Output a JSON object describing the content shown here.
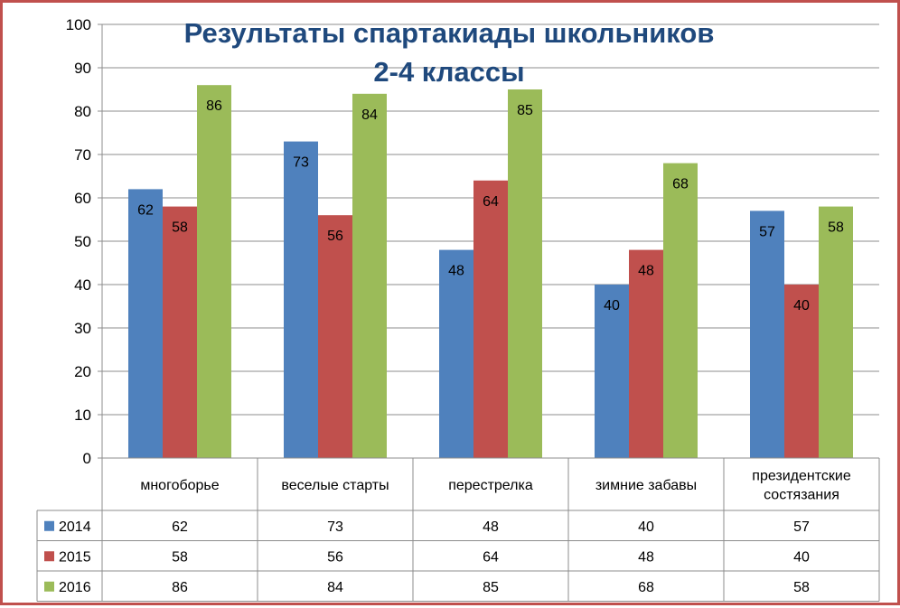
{
  "chart_data": {
    "type": "bar",
    "title_lines": [
      "Результаты спартакиады школьников",
      "2-4 классы"
    ],
    "categories": [
      [
        "многоборье"
      ],
      [
        "веселые старты"
      ],
      [
        "перестрелка"
      ],
      [
        "зимние забавы"
      ],
      [
        "президентские",
        "состязания"
      ]
    ],
    "series": [
      {
        "name": "2014",
        "color": "#4f81bd",
        "values": [
          62,
          73,
          48,
          40,
          57
        ]
      },
      {
        "name": "2015",
        "color": "#c0504d",
        "values": [
          58,
          56,
          64,
          48,
          40
        ]
      },
      {
        "name": "2016",
        "color": "#9bbb59",
        "values": [
          86,
          84,
          85,
          68,
          58
        ]
      }
    ],
    "ylim": [
      0,
      100
    ],
    "yticks": [
      0,
      10,
      20,
      30,
      40,
      50,
      60,
      70,
      80,
      90,
      100
    ],
    "grid": true,
    "data_labels": true,
    "legend": "data-table-left"
  }
}
